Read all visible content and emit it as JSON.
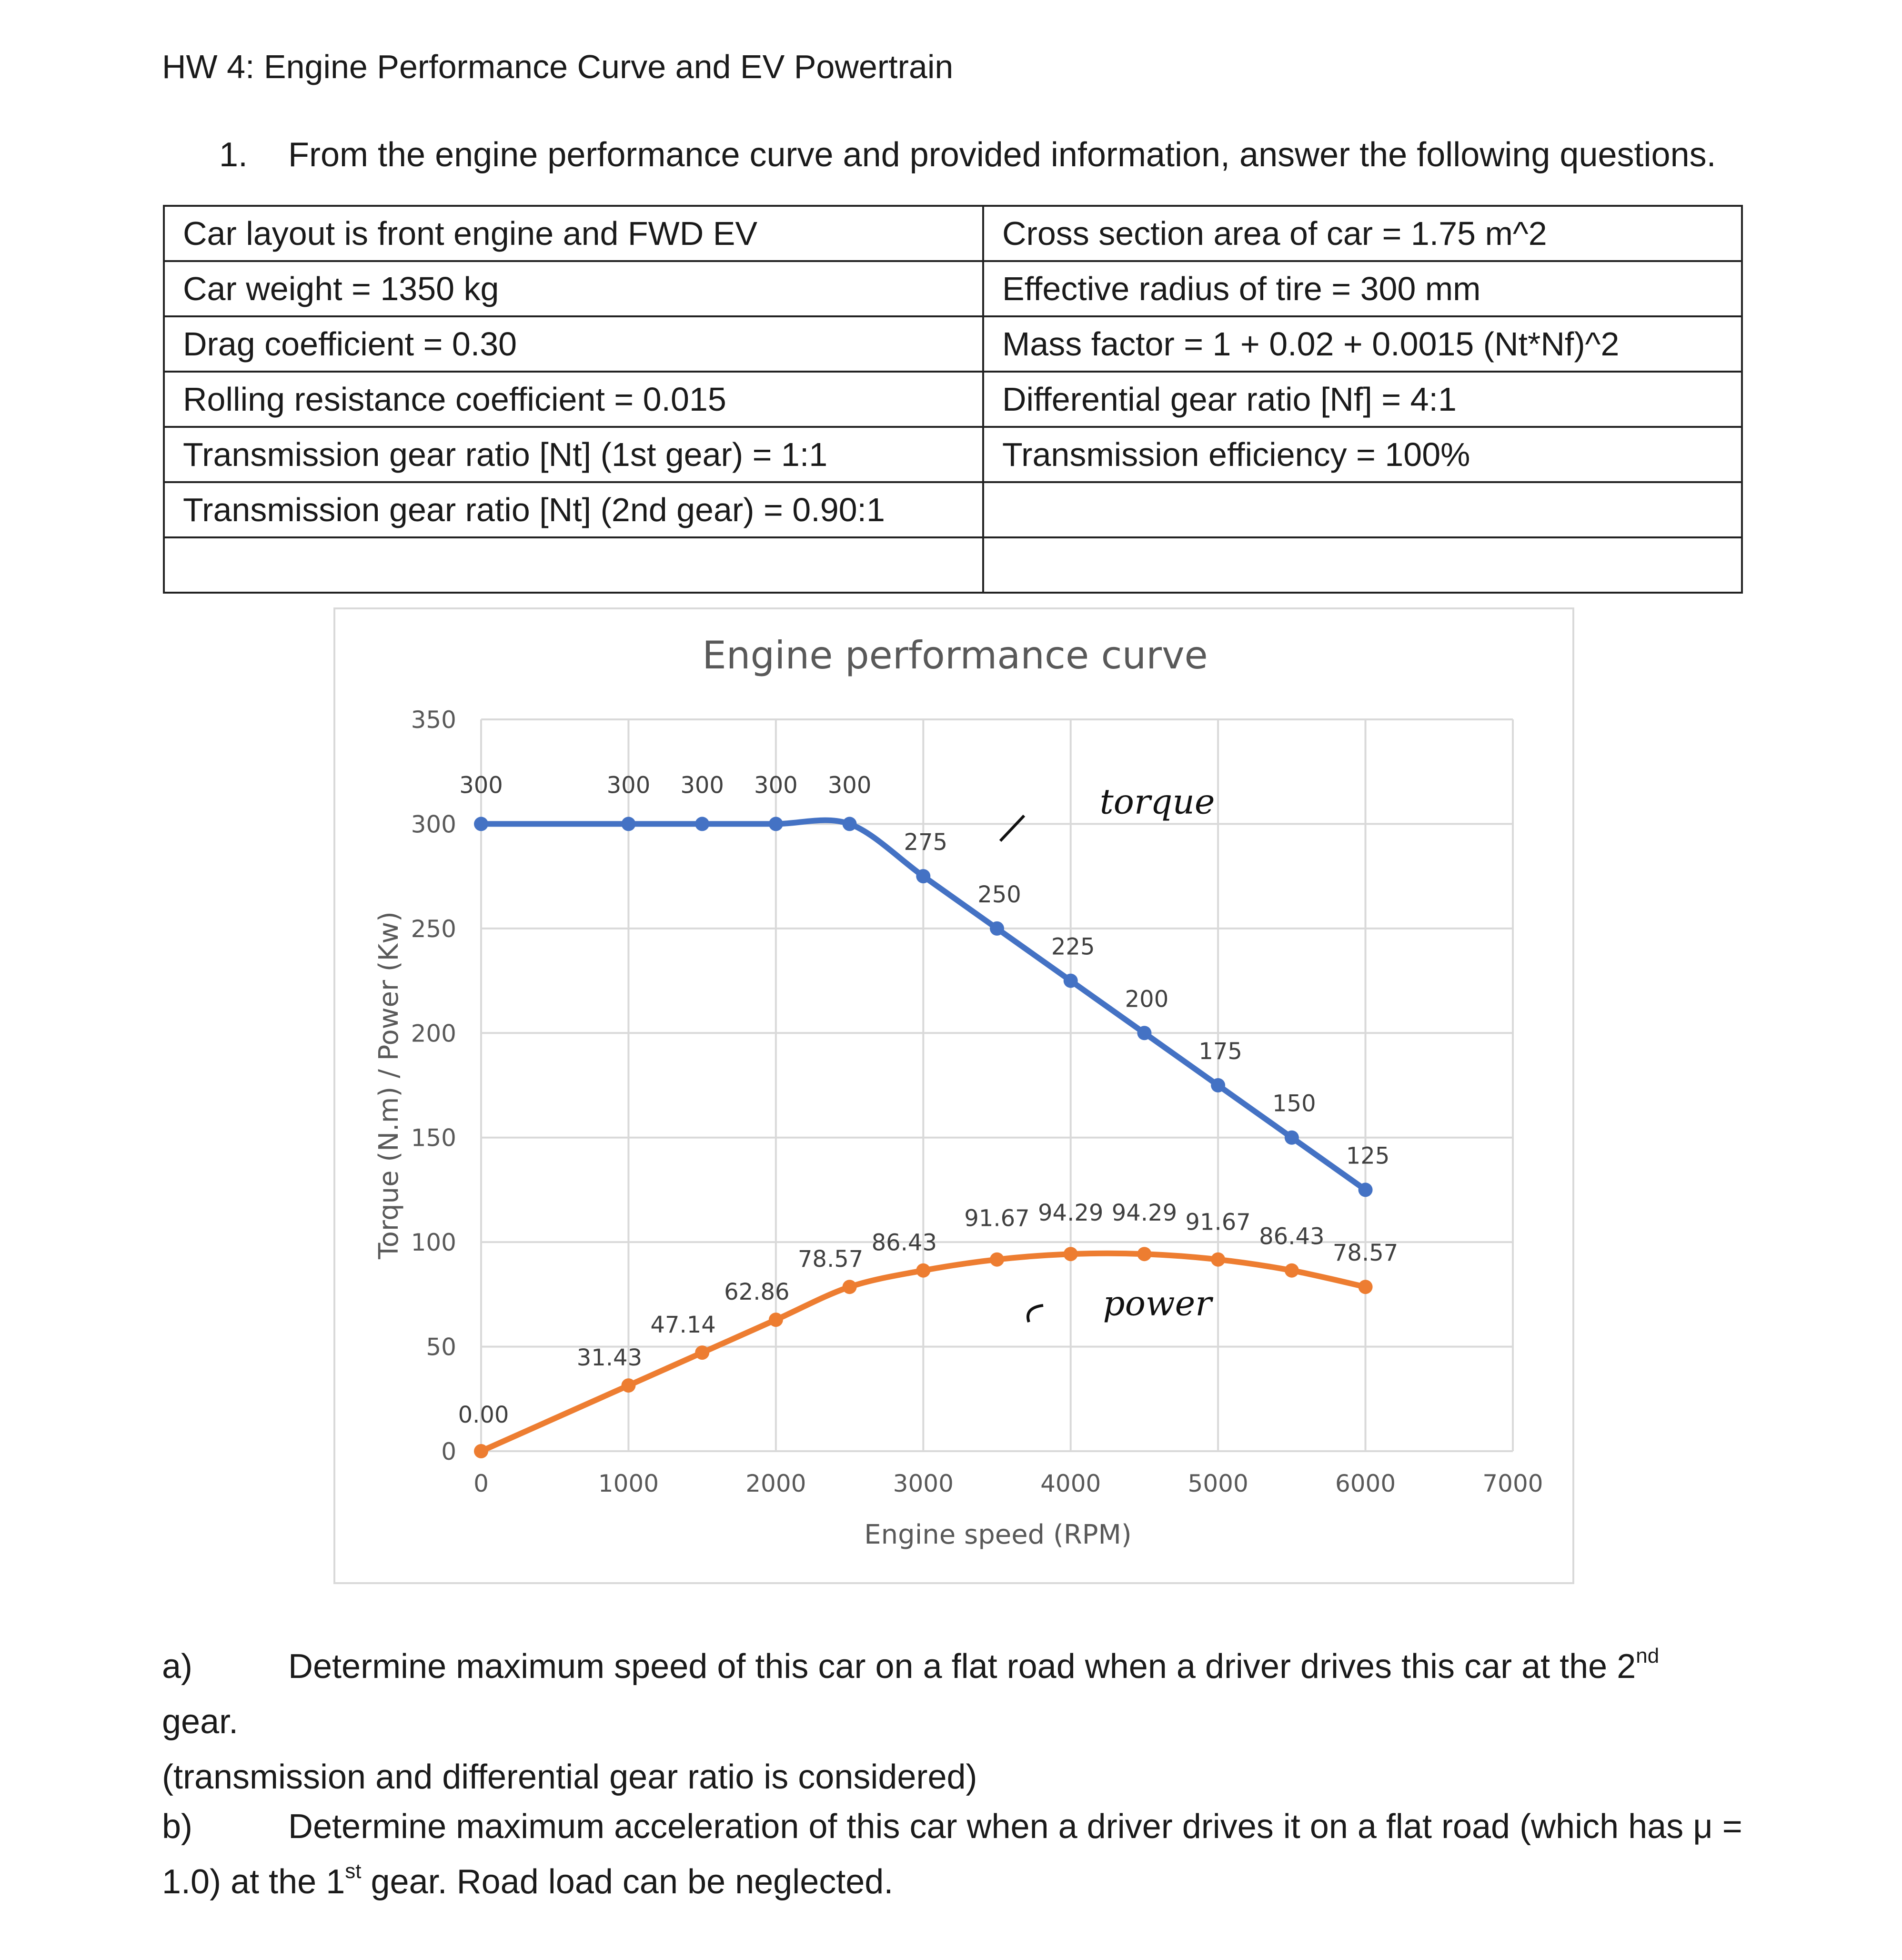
{
  "header": {
    "title": "HW 4: Engine Performance Curve and EV Powertrain"
  },
  "question1": {
    "number": "1.",
    "text": "From the engine performance curve and provided information, answer the following questions."
  },
  "info_table": {
    "rows": [
      [
        "Car layout is front engine and FWD EV",
        "Cross section area of car = 1.75 m^2"
      ],
      [
        "Car weight = 1350 kg",
        "Effective radius of tire = 300 mm"
      ],
      [
        "Drag coefficient = 0.30",
        "Mass factor = 1 + 0.02 + 0.0015 (Nt*Nf)^2"
      ],
      [
        "Rolling resistance coefficient = 0.015",
        "Differential gear ratio [Nf] = 4:1"
      ],
      [
        "Transmission gear ratio [Nt] (1st gear) = 1:1",
        "Transmission efficiency = 100%"
      ],
      [
        "Transmission gear ratio [Nt] (2nd gear) = 0.90:1",
        ""
      ],
      [
        "",
        ""
      ]
    ]
  },
  "chart_data": {
    "type": "line",
    "title": "Engine performance curve",
    "xlabel": "Engine speed (RPM)",
    "ylabel": "Torque (N.m) / Power (Kw)",
    "xlim": [
      0,
      7000
    ],
    "ylim": [
      0,
      350
    ],
    "xticks": [
      "0",
      "1000",
      "2000",
      "3000",
      "4000",
      "5000",
      "6000",
      "7000"
    ],
    "yticks": [
      "0",
      "50",
      "100",
      "150",
      "200",
      "250",
      "300",
      "350"
    ],
    "grid": true,
    "smooth": true,
    "series": [
      {
        "color": "#4472c4",
        "x": [
          0,
          1000,
          1500,
          2000,
          2500,
          3000,
          3500,
          4000,
          4500,
          5000,
          5500,
          6000
        ],
        "values": [
          300,
          300,
          300,
          300,
          300,
          275,
          250,
          225,
          200,
          175,
          150,
          125
        ],
        "labels": [
          "300",
          "300",
          "300",
          "300",
          "300",
          "275",
          "250",
          "225",
          "200",
          "175",
          "150",
          "125"
        ]
      },
      {
        "color": "#ed7d31",
        "x": [
          0,
          1000,
          1500,
          2000,
          2500,
          3000,
          3500,
          4000,
          4500,
          5000,
          5500,
          6000
        ],
        "values": [
          0.0,
          31.43,
          47.14,
          62.86,
          78.57,
          86.43,
          91.67,
          94.29,
          94.29,
          91.67,
          86.43,
          78.57
        ],
        "labels": [
          "0.00",
          "31.43",
          "47.14",
          "62.86",
          "78.57",
          "86.43",
          "91.67",
          "94.29",
          "94.29",
          "91.67",
          "86.43",
          "78.57"
        ]
      }
    ],
    "annotations": [
      {
        "text": "torque",
        "handwritten": true,
        "x": 4200,
        "y": 305
      },
      {
        "text": "power",
        "handwritten": true,
        "x": 4200,
        "y": 65
      }
    ]
  },
  "part_a": {
    "label": "a)",
    "text_before": "Determine maximum speed of this car on a flat road when a driver drives this car at the 2",
    "sup": "nd",
    "text_after": " gear.",
    "line2": "(transmission and differential gear ratio is considered)"
  },
  "part_b": {
    "label": "b)",
    "text": "Determine maximum acceleration of this car when a driver drives it on a flat road (which has μ =",
    "line2_before": "1.0) at the 1",
    "sup": "st",
    "line2_after": " gear. Road load can be neglected."
  }
}
